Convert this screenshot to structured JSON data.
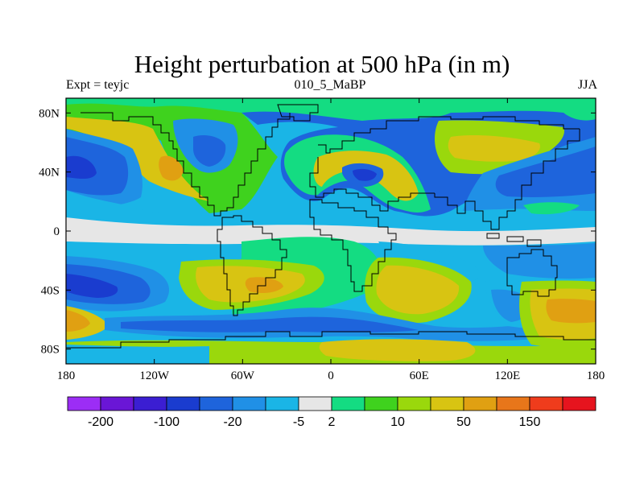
{
  "title": "Height perturbation at 500 hPa (in m)",
  "left_string": "Expt = teyjc",
  "center_string": "010_5_MaBP",
  "right_string": "JJA",
  "x_ticks": [
    {
      "lon": -180,
      "label": "180"
    },
    {
      "lon": -120,
      "label": "120W"
    },
    {
      "lon": -60,
      "label": "60W"
    },
    {
      "lon": 0,
      "label": "0"
    },
    {
      "lon": 60,
      "label": "60E"
    },
    {
      "lon": 120,
      "label": "120E"
    },
    {
      "lon": 180,
      "label": "180"
    }
  ],
  "y_ticks": [
    {
      "lat": 80,
      "label": "80N"
    },
    {
      "lat": 40,
      "label": "40N"
    },
    {
      "lat": 0,
      "label": "0"
    },
    {
      "lat": -40,
      "label": "40S"
    },
    {
      "lat": -80,
      "label": "80S"
    }
  ],
  "extent": {
    "lon": [
      -180,
      180
    ],
    "lat": [
      -90,
      90
    ]
  },
  "colorbar": {
    "colors": [
      "#9c2df5",
      "#6a16d6",
      "#3b1ed2",
      "#1a3ccf",
      "#1e64dc",
      "#2090e6",
      "#1ab5e6",
      "#e6e6e6",
      "#14dc82",
      "#3fd21e",
      "#9ad80c",
      "#d8c412",
      "#e0a012",
      "#e8761a",
      "#ef3c1c",
      "#e6141e"
    ],
    "labels": [
      {
        "after": 1,
        "text": "-200"
      },
      {
        "after": 3,
        "text": "-100"
      },
      {
        "after": 5,
        "text": "-20"
      },
      {
        "after": 7,
        "text": "-5"
      },
      {
        "after": 8,
        "text": "2"
      },
      {
        "after": 10,
        "text": "10"
      },
      {
        "after": 12,
        "text": "50"
      },
      {
        "after": 14,
        "text": "150"
      }
    ]
  },
  "field_colors": {
    "blue_dark": "#1a3ccf",
    "blue": "#1e64dc",
    "blue_mid": "#2090e6",
    "cyan": "#1ab5e6",
    "neutral": "#e6e6e6",
    "teal": "#14dc82",
    "green": "#3fd21e",
    "lime": "#9ad80c",
    "yellow": "#d8c412",
    "orange": "#e0a012",
    "orange_dark": "#e8761a"
  }
}
